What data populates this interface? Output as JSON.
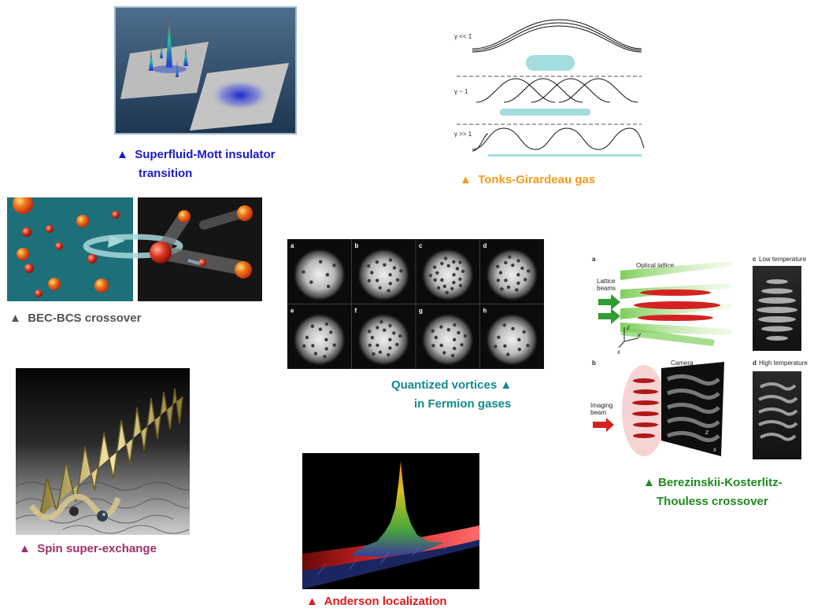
{
  "captions": {
    "mott_line1": "Superfluid-Mott insulator",
    "mott_line2": "transition",
    "tonks": "Tonks-Girardeau gas",
    "becbcs": "BEC-BCS crossover",
    "vortices_line1": "Quantized vortices",
    "vortices_line2": "in Fermion gases",
    "bkt_line1": "Berezinskii-Kosterlitz-",
    "bkt_line2": "Thouless crossover",
    "spin": "Spin super-exchange",
    "anderson": "Anderson localization",
    "triangle": "▲"
  },
  "colors": {
    "mott": "#1a1acc",
    "tonks": "#f59a1e",
    "becbcs": "#555555",
    "vortices": "#138a8a",
    "bkt": "#1f8a1f",
    "spin": "#a0306a",
    "anderson": "#e01a1a"
  },
  "tonks_figure": {
    "labels": [
      "γ << 1",
      "γ ~ 1",
      "γ >> 1"
    ]
  },
  "vortex_grid": {
    "labels": [
      "a",
      "b",
      "c",
      "d",
      "e",
      "f",
      "g",
      "h"
    ]
  },
  "bkt_figure": {
    "panel_a": "a",
    "panel_b": "b",
    "panel_c": "c",
    "panel_d": "d",
    "optical_lattice": "Optical lattice",
    "lattice_beams_1": "Lattice",
    "lattice_beams_2": "beams",
    "camera": "Camera",
    "imaging_beam_1": "Imaging",
    "imaging_beam_2": "beam",
    "low_temp": "Low temperature",
    "high_temp": "High temperature",
    "axis_z": "z",
    "axis_y": "y",
    "axis_x": "x"
  }
}
